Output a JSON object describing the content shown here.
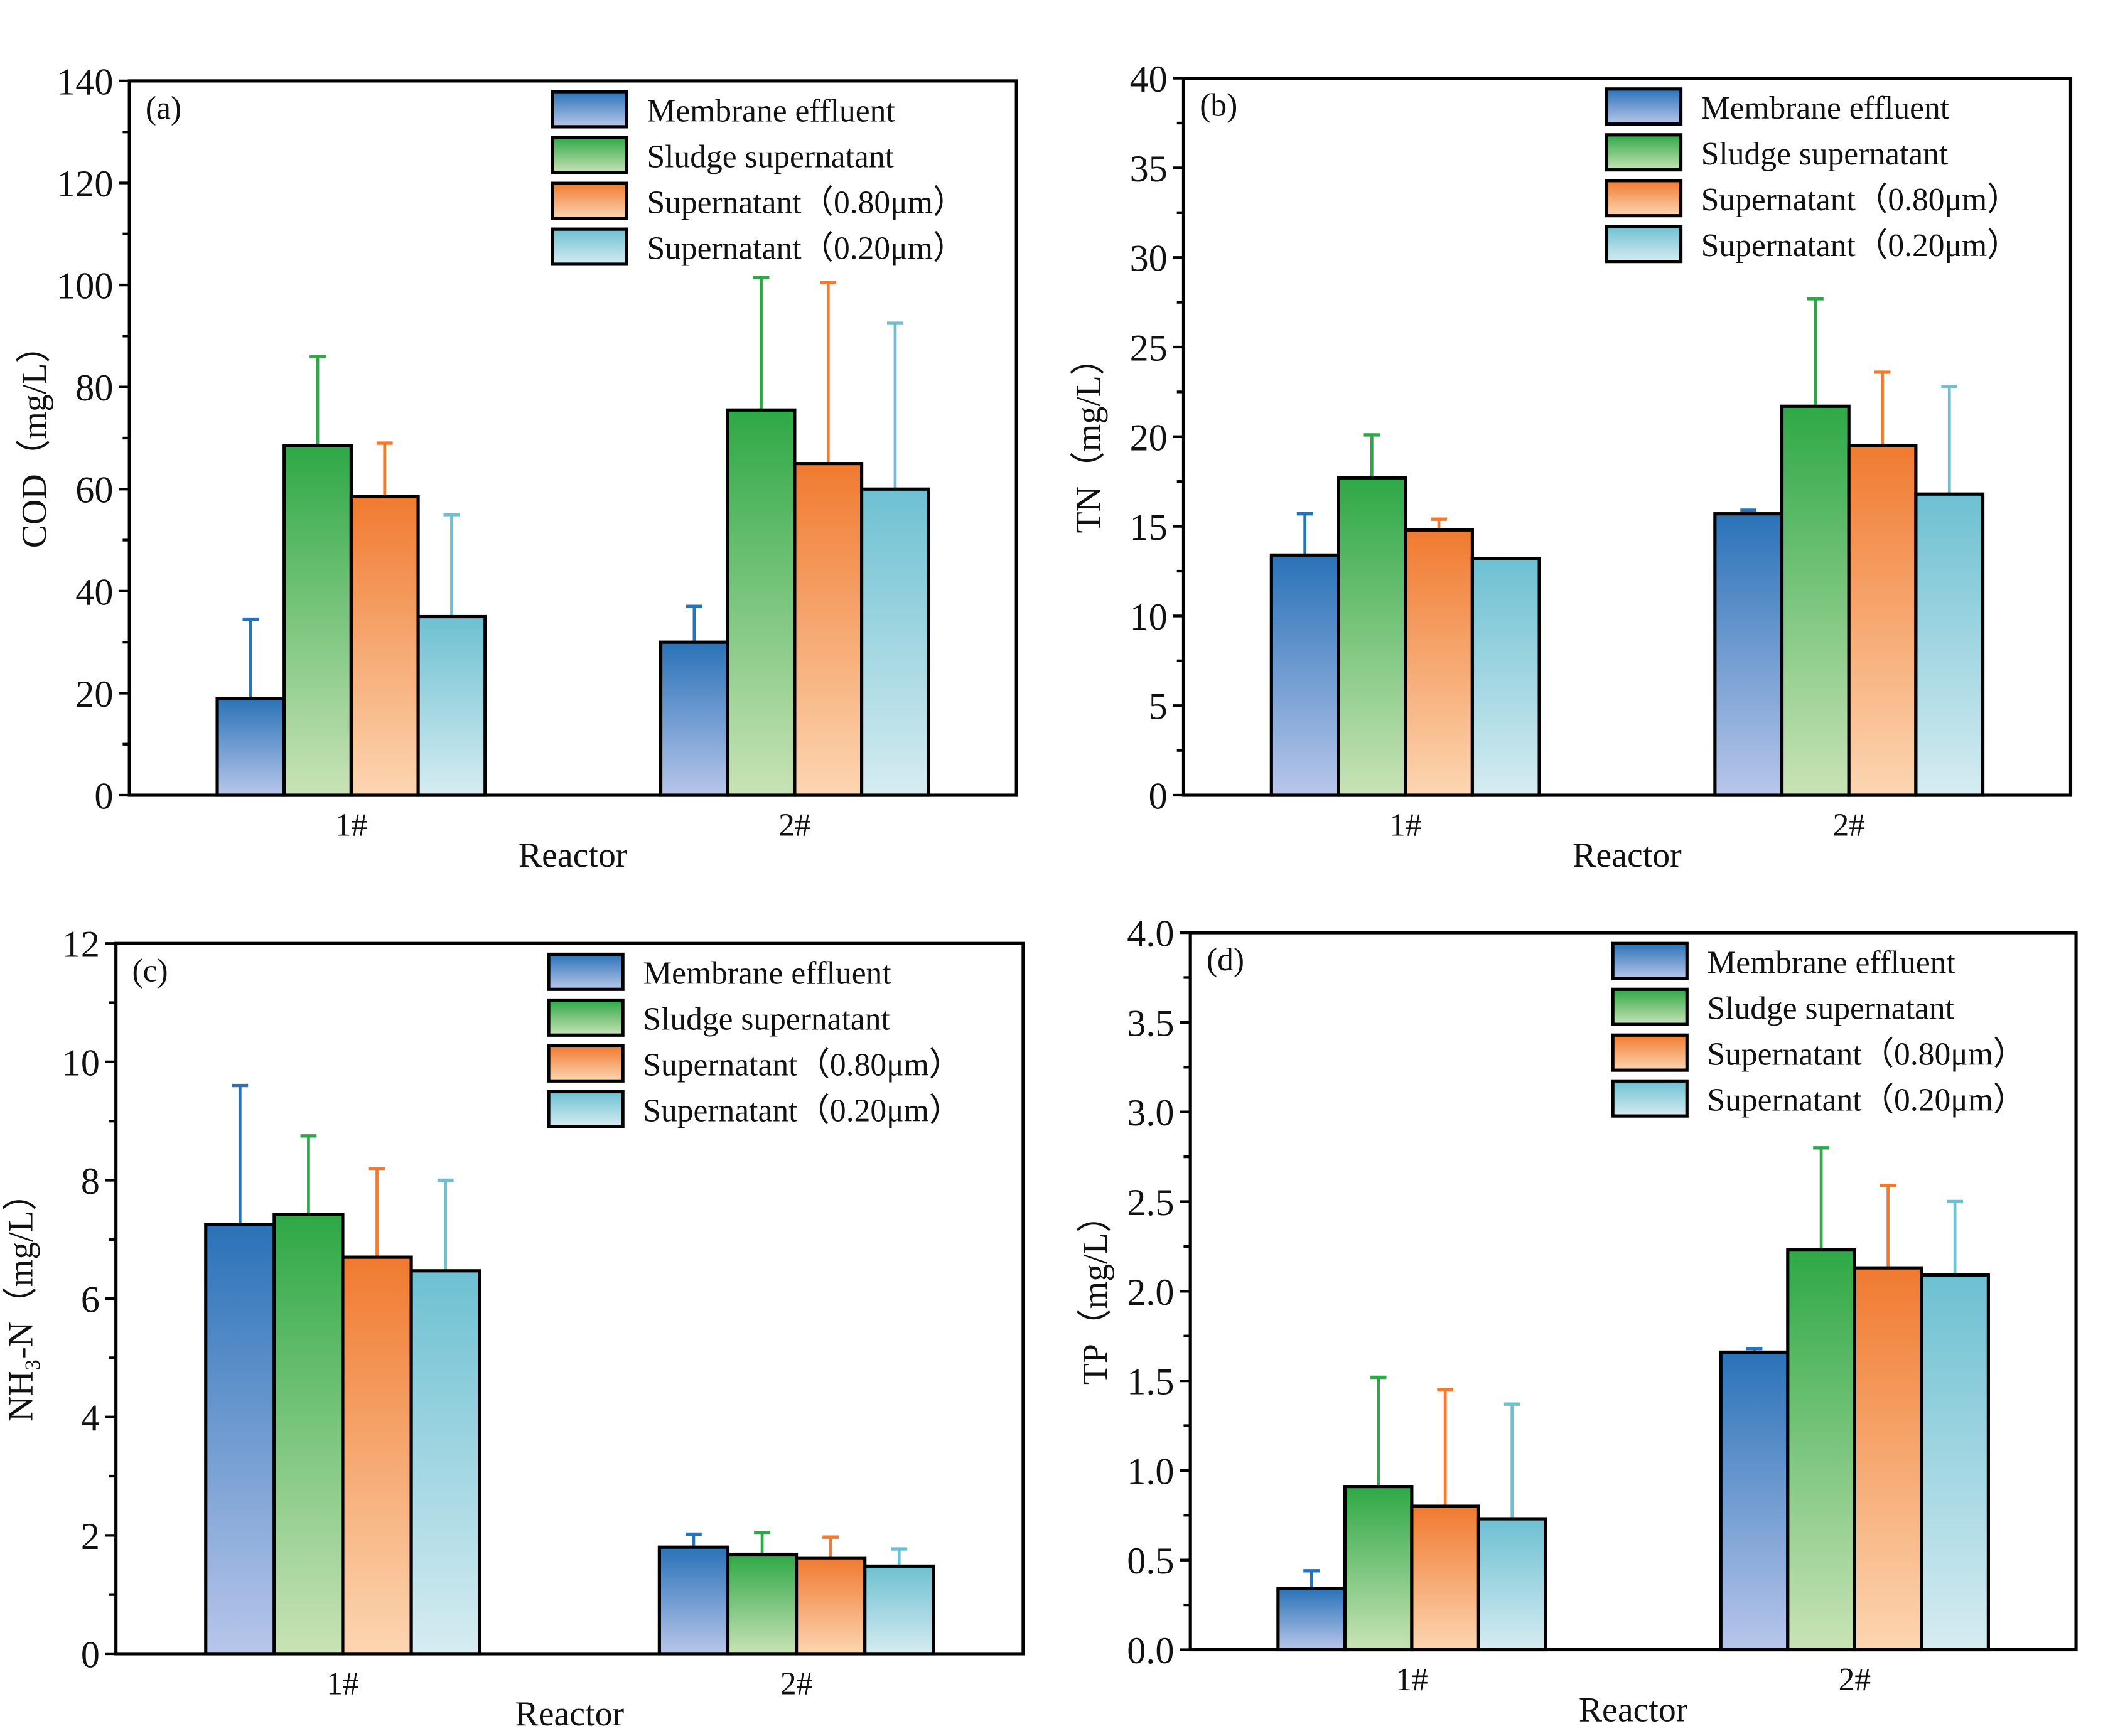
{
  "series_colors": [
    {
      "name": "Membrane effluent",
      "top": "#2a72b8",
      "bottom": "#b8c6ea"
    },
    {
      "name": "Sludge supernatant",
      "top": "#2ea846",
      "bottom": "#c9e3b6"
    },
    {
      "name": "Supernatant（0.80μm）",
      "top": "#f07a30",
      "bottom": "#fcd6b2"
    },
    {
      "name": "Supernatant（0.20μm）",
      "top": "#6dc0d2",
      "bottom": "#d6ecf1"
    }
  ],
  "chart_data": [
    {
      "type": "bar",
      "panel_label": "(a)",
      "xlabel": "Reactor",
      "ylabel": "COD（mg/L）",
      "categories": [
        "1#",
        "2#"
      ],
      "ylim": [
        0,
        140
      ],
      "yticks": [
        0,
        20,
        40,
        60,
        80,
        100,
        120,
        140
      ],
      "ytick_labels": [
        "0",
        "20",
        "40",
        "60",
        "80",
        "100",
        "120",
        "140"
      ],
      "legend": "top-right",
      "series": [
        {
          "name": "Membrane effluent",
          "values": [
            19,
            30
          ],
          "err_upper": [
            34.5,
            37
          ]
        },
        {
          "name": "Sludge supernatant",
          "values": [
            68.5,
            75.5
          ],
          "err_upper": [
            86,
            101.5
          ]
        },
        {
          "name": "Supernatant（0.80μm）",
          "values": [
            58.5,
            65
          ],
          "err_upper": [
            69,
            100.5
          ]
        },
        {
          "name": "Supernatant（0.20μm）",
          "values": [
            35,
            60
          ],
          "err_upper": [
            55,
            92.5
          ]
        }
      ]
    },
    {
      "type": "bar",
      "panel_label": "(b)",
      "xlabel": "Reactor",
      "ylabel": "TN（mg/L）",
      "categories": [
        "1#",
        "2#"
      ],
      "ylim": [
        0,
        40
      ],
      "yticks": [
        0,
        5,
        10,
        15,
        20,
        25,
        30,
        35,
        40
      ],
      "ytick_labels": [
        "0",
        "5",
        "10",
        "15",
        "20",
        "25",
        "30",
        "35",
        "40"
      ],
      "legend": "top-right",
      "series": [
        {
          "name": "Membrane effluent",
          "values": [
            13.4,
            15.7
          ],
          "err_upper": [
            15.7,
            15.9
          ]
        },
        {
          "name": "Sludge supernatant",
          "values": [
            17.7,
            21.7
          ],
          "err_upper": [
            20.1,
            27.7
          ]
        },
        {
          "name": "Supernatant（0.80μm）",
          "values": [
            14.8,
            19.5
          ],
          "err_upper": [
            15.4,
            23.6
          ]
        },
        {
          "name": "Supernatant（0.20μm）",
          "values": [
            13.2,
            16.8
          ],
          "err_upper": [
            13.2,
            22.8
          ]
        }
      ]
    },
    {
      "type": "bar",
      "panel_label": "(c)",
      "xlabel": "Reactor",
      "ylabel": "NH₃-N（mg/L）",
      "categories": [
        "1#",
        "2#"
      ],
      "ylim": [
        0,
        12
      ],
      "yticks": [
        0,
        2,
        4,
        6,
        8,
        10,
        12
      ],
      "ytick_labels": [
        "0",
        "2",
        "4",
        "6",
        "8",
        "10",
        "12"
      ],
      "legend": "top-right",
      "series": [
        {
          "name": "Membrane effluent",
          "values": [
            7.25,
            1.8
          ],
          "err_upper": [
            9.6,
            2.02
          ]
        },
        {
          "name": "Sludge supernatant",
          "values": [
            7.42,
            1.68
          ],
          "err_upper": [
            8.75,
            2.05
          ]
        },
        {
          "name": "Supernatant（0.80μm）",
          "values": [
            6.7,
            1.62
          ],
          "err_upper": [
            8.2,
            1.97
          ]
        },
        {
          "name": "Supernatant（0.20μm）",
          "values": [
            6.47,
            1.48
          ],
          "err_upper": [
            8.0,
            1.77
          ]
        }
      ]
    },
    {
      "type": "bar",
      "panel_label": "(d)",
      "xlabel": "Reactor",
      "ylabel": "TP（mg/L）",
      "categories": [
        "1#",
        "2#"
      ],
      "ylim": [
        0,
        4
      ],
      "yticks": [
        0,
        0.5,
        1,
        1.5,
        2,
        2.5,
        3,
        3.5,
        4
      ],
      "ytick_labels": [
        "0.0",
        "0.5",
        "1.0",
        "1.5",
        "2.0",
        "2.5",
        "3.0",
        "3.5",
        "4.0"
      ],
      "legend": "top-right",
      "series": [
        {
          "name": "Membrane effluent",
          "values": [
            0.34,
            1.66
          ],
          "err_upper": [
            0.44,
            1.68
          ]
        },
        {
          "name": "Sludge supernatant",
          "values": [
            0.91,
            2.23
          ],
          "err_upper": [
            1.52,
            2.8
          ]
        },
        {
          "name": "Supernatant（0.80μm）",
          "values": [
            0.8,
            2.13
          ],
          "err_upper": [
            1.45,
            2.59
          ]
        },
        {
          "name": "Supernatant（0.20μm）",
          "values": [
            0.73,
            2.09
          ],
          "err_upper": [
            1.37,
            2.5
          ]
        }
      ]
    }
  ]
}
